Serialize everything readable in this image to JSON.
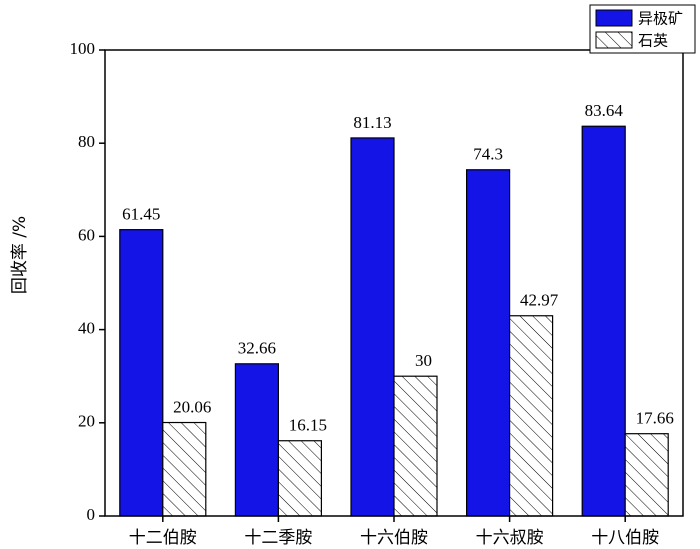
{
  "chart_data": {
    "type": "bar",
    "y_label": "回收率 /%",
    "categories": [
      "十二伯胺",
      "十二季胺",
      "十六伯胺",
      "十六叔胺",
      "十八伯胺"
    ],
    "series": [
      {
        "name": "异极矿",
        "color": "#1414e6",
        "pattern": "solid",
        "values": [
          61.45,
          32.66,
          81.13,
          74.3,
          83.64
        ]
      },
      {
        "name": "石英",
        "color": "#ffffff",
        "pattern": "hatch",
        "values": [
          20.06,
          16.15,
          30,
          42.97,
          17.66
        ]
      }
    ],
    "ylim": [
      0,
      100
    ],
    "yticks": [
      0,
      20,
      40,
      60,
      80,
      100
    ],
    "legend": "top-right"
  }
}
